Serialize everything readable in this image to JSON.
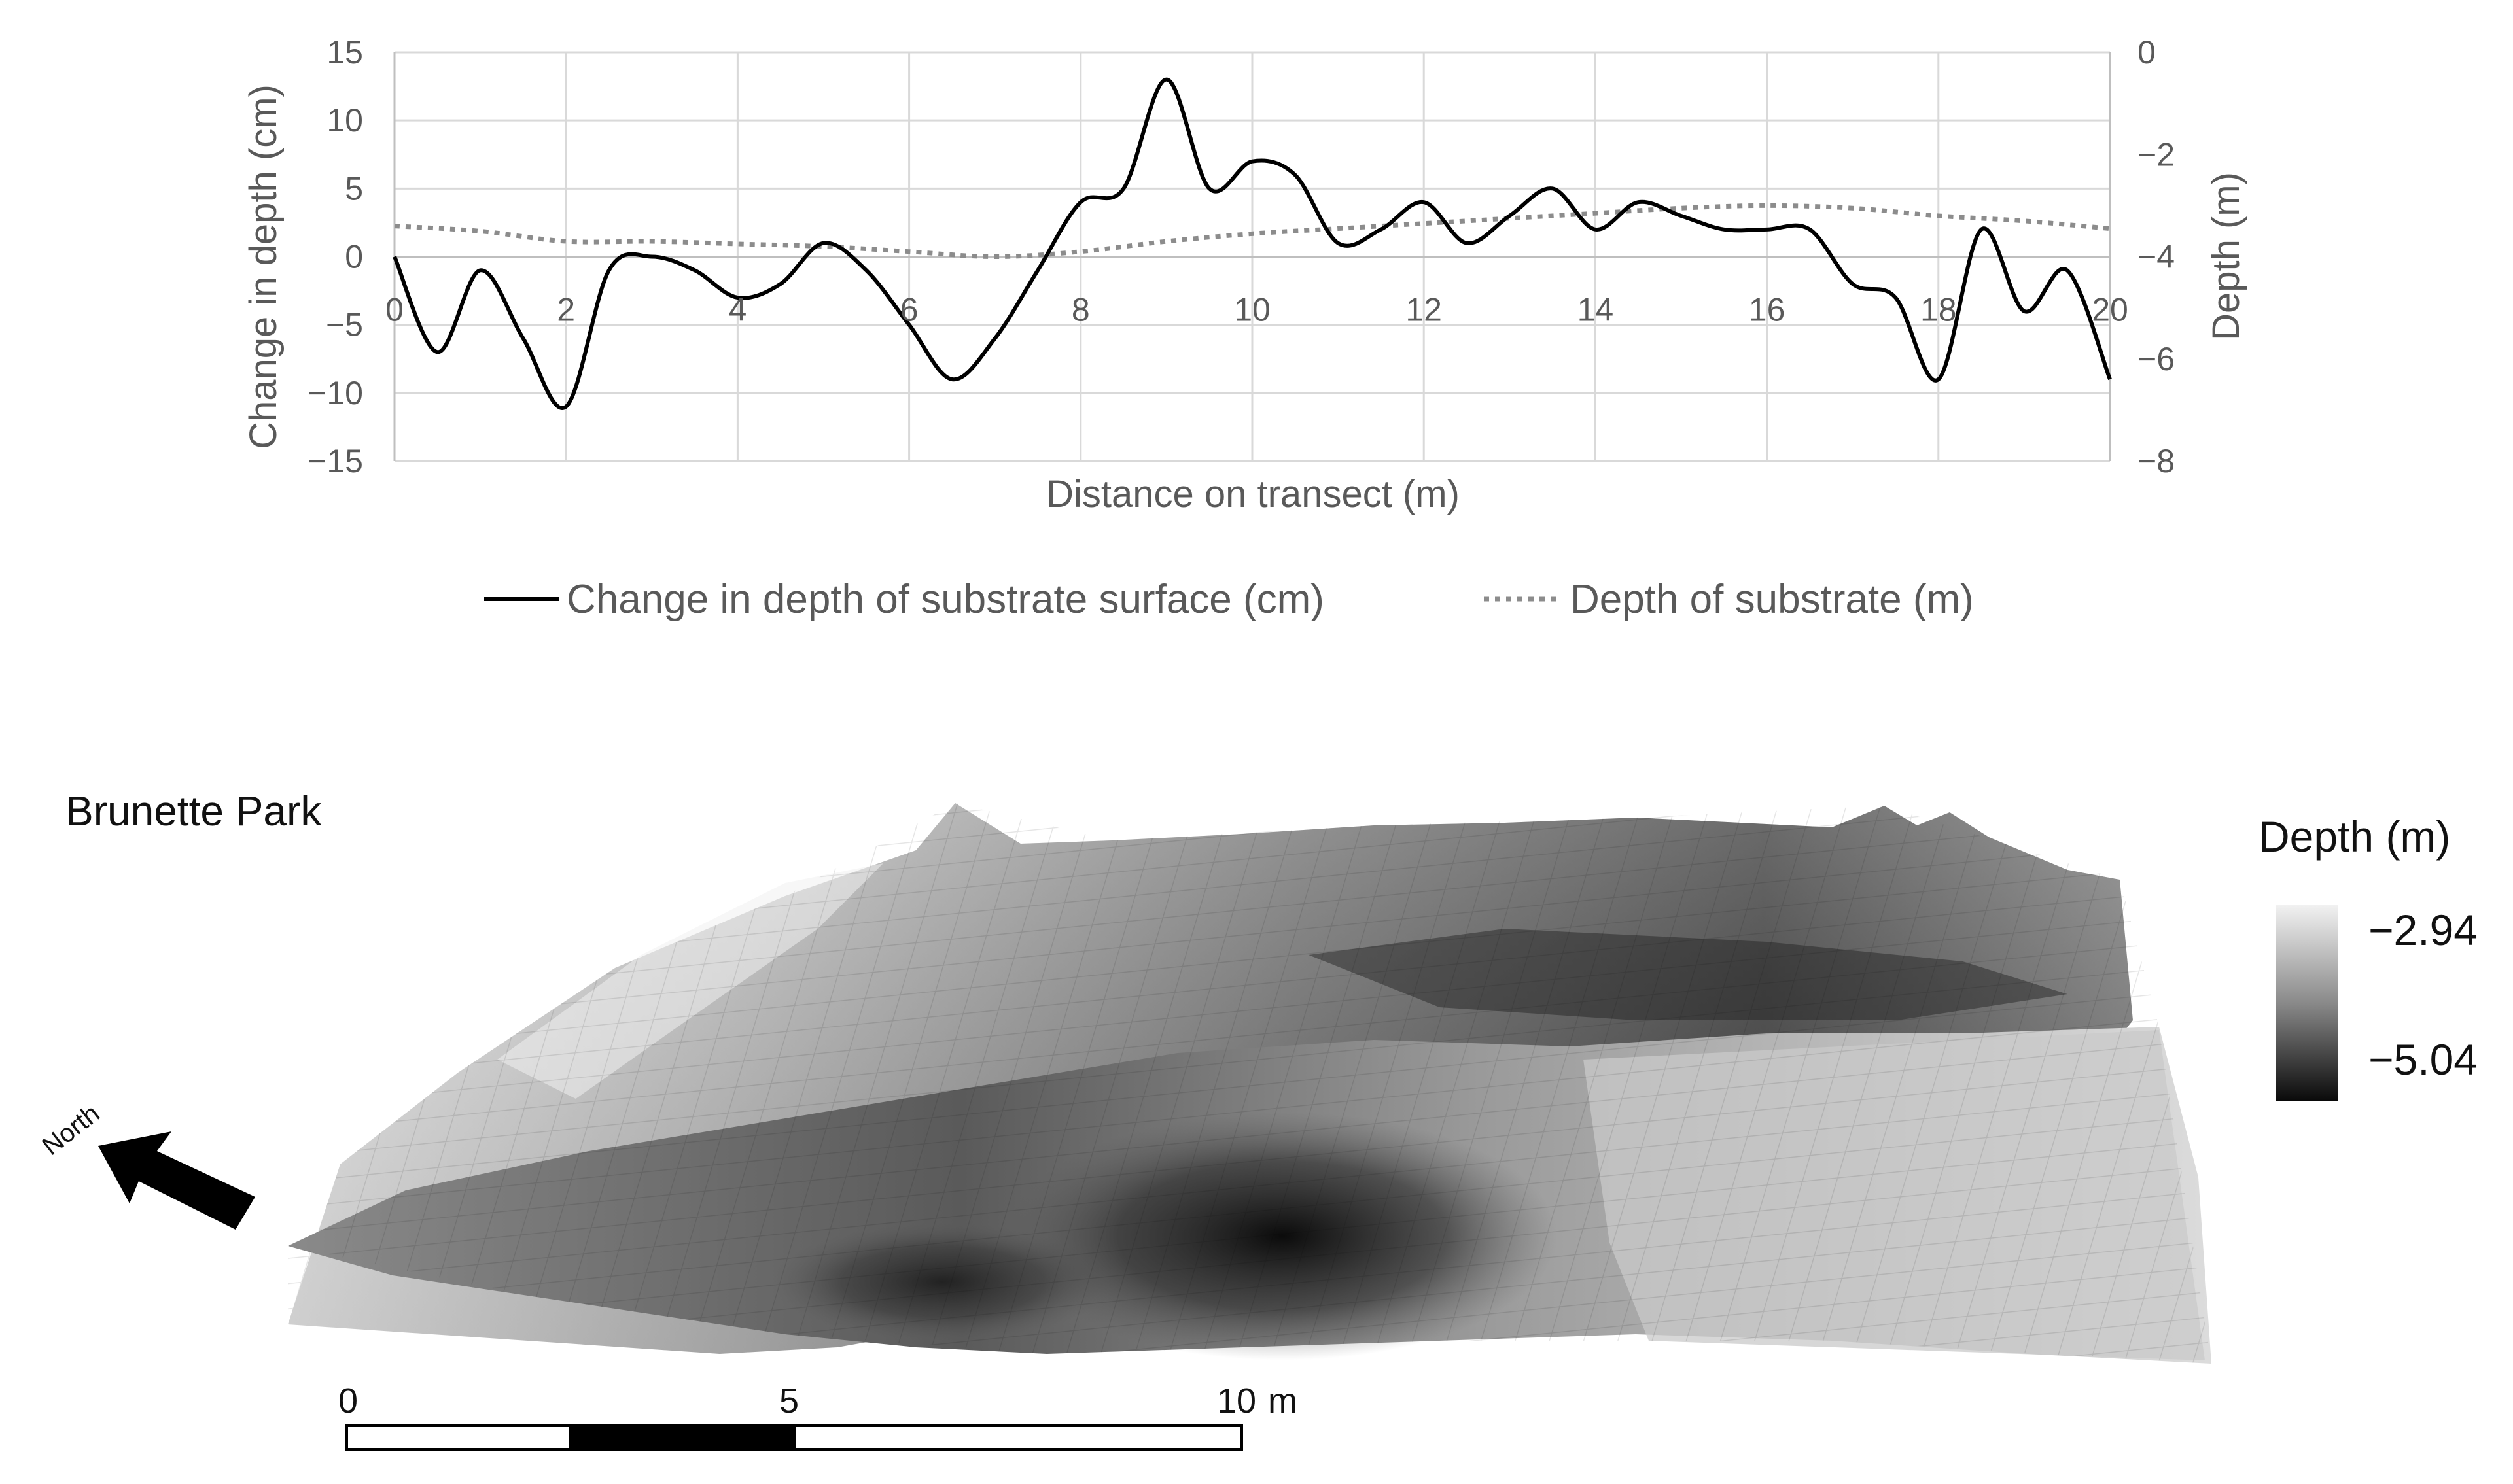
{
  "chart_data": [
    {
      "type": "line",
      "title": "",
      "xlabel": "Distance on transect (m)",
      "ylabel": "Change in depth (cm)",
      "y2label": "Depth (m)",
      "xlim": [
        0,
        20
      ],
      "ylim": [
        -15,
        15
      ],
      "y2lim": [
        -8,
        0
      ],
      "xticks": [
        "0",
        "2",
        "4",
        "6",
        "8",
        "10",
        "12",
        "14",
        "16",
        "18",
        "20"
      ],
      "yticks": [
        "15",
        "10",
        "5",
        "0",
        "−5",
        "−10",
        "−15"
      ],
      "y2ticks": [
        "0",
        "−2",
        "−4",
        "−6",
        "−8"
      ],
      "grid": true,
      "legend_position": "bottom",
      "series": [
        {
          "name": "Change in depth of substrate surface (cm)",
          "axis": "left",
          "style": "solid",
          "color": "#000000",
          "x": [
            0,
            0.5,
            1.0,
            1.5,
            2.0,
            2.5,
            3.0,
            3.5,
            4.0,
            4.5,
            5.0,
            5.5,
            6.0,
            6.5,
            7.0,
            7.5,
            8.0,
            8.5,
            9.0,
            9.5,
            10.0,
            10.5,
            11.0,
            11.5,
            12.0,
            12.5,
            13.0,
            13.5,
            14.0,
            14.5,
            15.0,
            15.5,
            16.0,
            16.5,
            17.0,
            17.5,
            18.0,
            18.5,
            19.0,
            19.5,
            20.0
          ],
          "y": [
            0,
            -7,
            -1,
            -6,
            -11,
            -1,
            0,
            -1,
            -3,
            -2,
            1,
            -1,
            -5,
            -9,
            -6,
            -1,
            4,
            5,
            13,
            5,
            7,
            6,
            1,
            2,
            4,
            1,
            3,
            5,
            2,
            4,
            3,
            2,
            2,
            2,
            -2,
            -3,
            -9,
            2,
            -4,
            -1,
            -9
          ]
        },
        {
          "name": "Depth of substrate (m)",
          "axis": "right",
          "style": "dotted",
          "color": "#8c8c8c",
          "x": [
            0,
            1,
            2,
            3,
            4,
            5,
            6,
            7,
            8,
            9,
            10,
            11,
            12,
            13,
            14,
            15,
            16,
            17,
            18,
            19,
            20
          ],
          "y": [
            -3.4,
            -3.5,
            -3.7,
            -3.7,
            -3.75,
            -3.8,
            -3.9,
            -4.0,
            -3.9,
            -3.7,
            -3.55,
            -3.45,
            -3.35,
            -3.25,
            -3.15,
            -3.05,
            -3.0,
            -3.05,
            -3.2,
            -3.3,
            -3.45
          ]
        }
      ]
    },
    {
      "type": "heatmap",
      "title": "Brunette Park",
      "colorbar_label": "Depth (m)",
      "colorbar_values": [
        -2.94,
        -5.04
      ],
      "colorbar_labels": [
        "−2.94",
        "−5.04"
      ],
      "colormap": [
        "#f2f2f2",
        "#0a0a0a"
      ],
      "north_label": "North",
      "scalebar_labels": [
        "0",
        "5",
        "10",
        "m"
      ],
      "scalebar_range_m": [
        0,
        10
      ]
    }
  ]
}
